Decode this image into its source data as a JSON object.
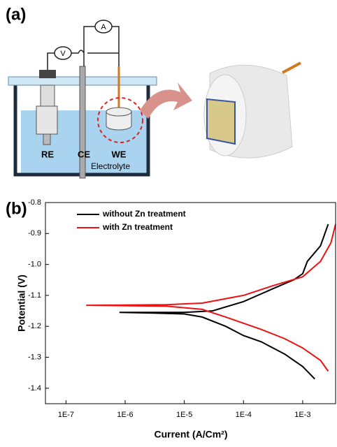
{
  "panels": [
    "(a)",
    "(b)"
  ],
  "diagram": {
    "meters": [
      "V",
      "A"
    ],
    "electrodes": [
      "RE",
      "CE",
      "WE"
    ],
    "electrolyte": "Electrolyte"
  },
  "chart_data": {
    "type": "line",
    "x_label": "Current (A/Cm²)",
    "y_label": "Potential (V)",
    "xscale": "log",
    "xlim": [
      4.5e-08,
      0.0036
    ],
    "ylim": [
      -1.45,
      -0.8
    ],
    "xticks": [
      {
        "value": 1e-07,
        "label": "1E-7"
      },
      {
        "value": 1e-06,
        "label": "1E-6"
      },
      {
        "value": 1e-05,
        "label": "1E-5"
      },
      {
        "value": 0.0001,
        "label": "1E-4"
      },
      {
        "value": 0.001,
        "label": "1E-3"
      }
    ],
    "yticks": [
      -0.8,
      -0.9,
      {
        "value": -1,
        "label": "-1.0"
      },
      -1.1,
      -1.2,
      -1.3,
      -1.4
    ],
    "legend": "upper-left",
    "series": [
      {
        "name": "without Zn treatment",
        "color": "#000000",
        "x": [
          0.0016,
          0.001,
          0.0005,
          0.0002,
          0.0001,
          5e-05,
          2e-05,
          1e-05,
          3e-06,
          8e-07,
          1e-05,
          3e-05,
          0.0001,
          0.0003,
          0.0007,
          0.001,
          0.0012,
          0.002,
          0.0027
        ],
        "values": [
          -1.37,
          -1.33,
          -1.29,
          -1.25,
          -1.23,
          -1.2,
          -1.17,
          -1.16,
          -1.157,
          -1.155,
          -1.155,
          -1.15,
          -1.12,
          -1.08,
          -1.05,
          -1.03,
          -0.99,
          -0.94,
          -0.87
        ]
      },
      {
        "name": "with Zn treatment",
        "color": "#ee1111",
        "x": [
          0.0027,
          0.002,
          0.001,
          0.0005,
          0.0002,
          0.0001,
          5e-05,
          2e-05,
          5e-06,
          2.2e-07,
          5e-06,
          2e-05,
          0.0001,
          0.0003,
          0.001,
          0.002,
          0.003,
          0.0036
        ],
        "values": [
          -1.345,
          -1.31,
          -1.27,
          -1.24,
          -1.21,
          -1.19,
          -1.17,
          -1.145,
          -1.135,
          -1.132,
          -1.13,
          -1.125,
          -1.1,
          -1.07,
          -1.04,
          -0.99,
          -0.93,
          -0.87
        ]
      }
    ]
  }
}
